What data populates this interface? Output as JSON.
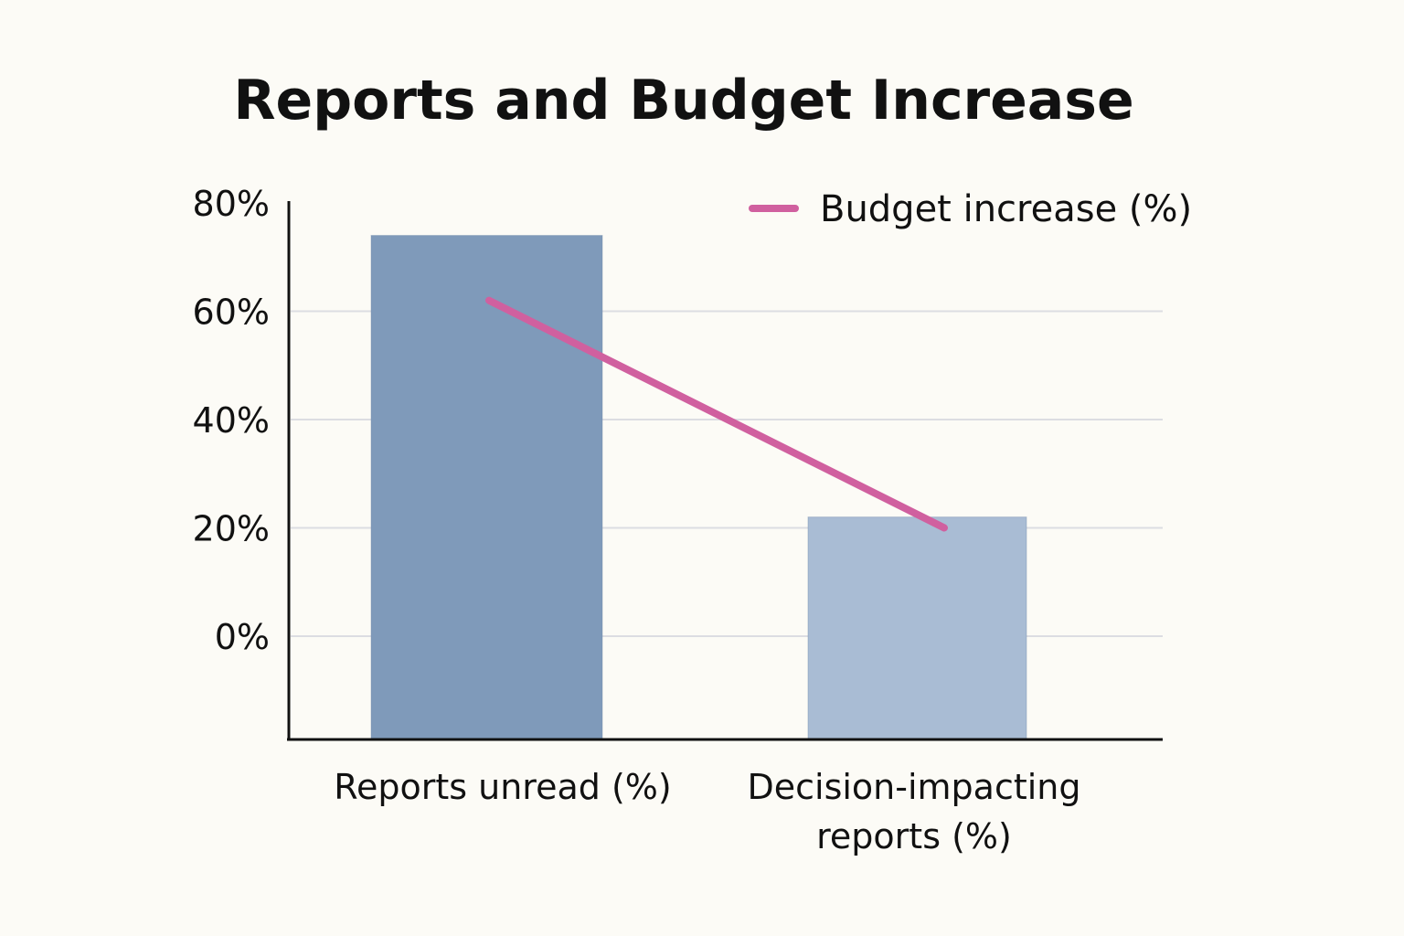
{
  "chart_data": {
    "type": "bar",
    "title": "Reports and Budget Increase",
    "xlabel": "",
    "ylabel": "",
    "categories": [
      "Reports unread (%)",
      "Decision-impacting reports (%)"
    ],
    "category_lines": [
      [
        "Reports unread (%)"
      ],
      [
        "Decision-impacting",
        "reports (%)"
      ]
    ],
    "bars": {
      "values": [
        74,
        22
      ],
      "colors": [
        "#7f9aba",
        "#a9bcd4"
      ]
    },
    "line_series": {
      "name": "Budget increase (%)",
      "values": [
        62,
        20
      ],
      "color": "#d0609f"
    },
    "yticks": [
      0,
      20,
      40,
      60,
      80
    ],
    "ytick_labels": [
      "0%",
      "20%",
      "40%",
      "60%",
      "80%"
    ],
    "ylim": [
      -19,
      80
    ],
    "grid": true,
    "legend_position": "top-right"
  }
}
